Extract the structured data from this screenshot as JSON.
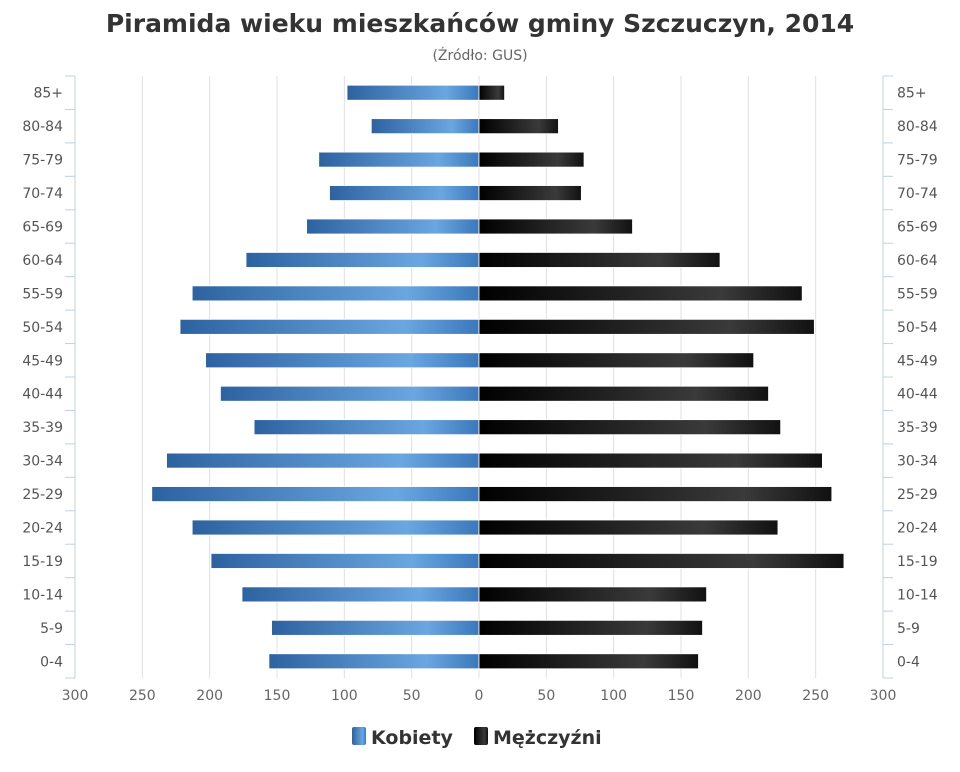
{
  "chart_data": {
    "type": "bar",
    "orientation": "horizontal-population-pyramid",
    "title": "Piramida wieku mieszkańców gminy Szczuczyn, 2014",
    "subtitle": "(Źródło: GUS)",
    "categories": [
      "85+",
      "80-84",
      "75-79",
      "70-74",
      "65-69",
      "60-64",
      "55-59",
      "50-54",
      "45-49",
      "40-44",
      "35-39",
      "30-34",
      "25-29",
      "20-24",
      "15-19",
      "10-14",
      "5-9",
      "0-4"
    ],
    "series": [
      {
        "name": "Kobiety",
        "color": "#3d7cc0",
        "side": "left",
        "values": [
          98,
          80,
          119,
          111,
          128,
          173,
          213,
          222,
          203,
          192,
          167,
          232,
          243,
          213,
          199,
          176,
          154,
          156
        ]
      },
      {
        "name": "Mężczyźni",
        "color": "#111111",
        "side": "right",
        "values": [
          19,
          59,
          78,
          76,
          114,
          179,
          240,
          249,
          204,
          215,
          224,
          255,
          262,
          222,
          271,
          169,
          166,
          163
        ]
      }
    ],
    "xlim": [
      -300,
      300
    ],
    "xticks": [
      "300",
      "250",
      "200",
      "150",
      "100",
      "50",
      "0",
      "50",
      "100",
      "150",
      "200",
      "250",
      "300"
    ],
    "grid": true,
    "legend": "bottom-center"
  }
}
